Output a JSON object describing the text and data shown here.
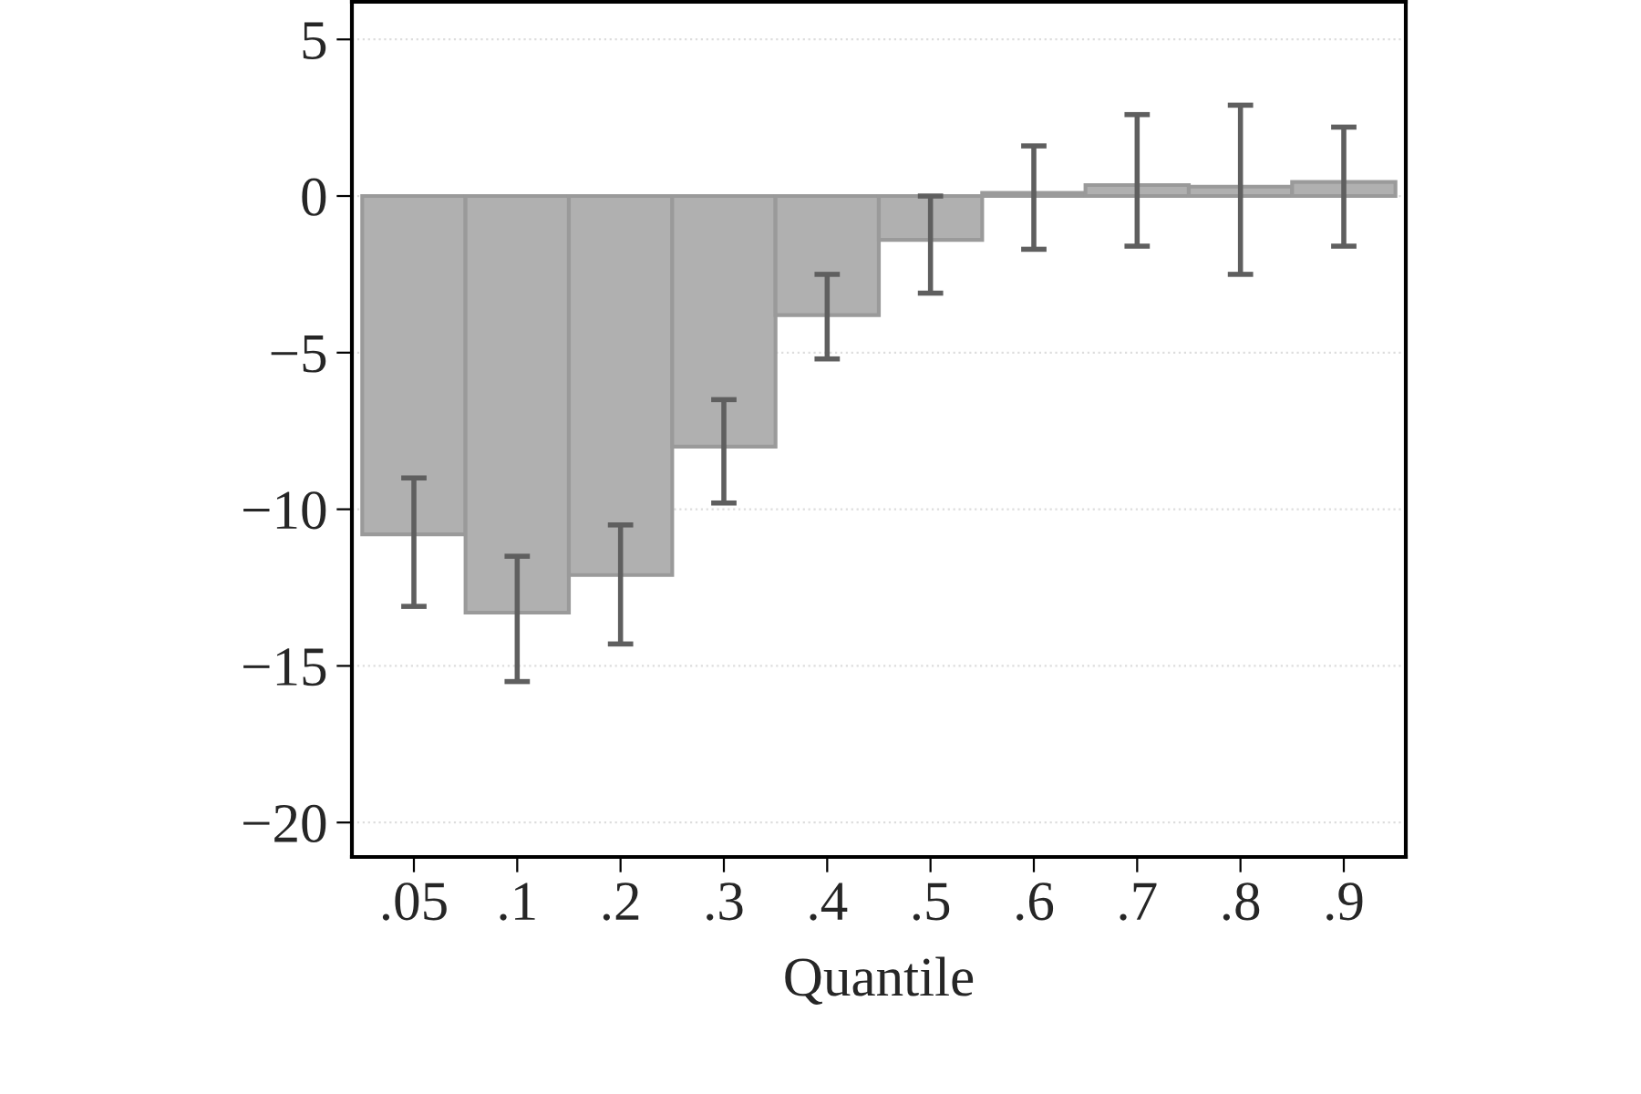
{
  "chart_data": {
    "type": "bar",
    "xlabel": "Quantile",
    "categories": [
      ".05",
      ".1",
      ".2",
      ".3",
      ".4",
      ".5",
      ".6",
      ".7",
      ".8",
      ".9"
    ],
    "values": [
      -10.8,
      -13.3,
      -12.1,
      -8.0,
      -3.8,
      -1.4,
      0.1,
      0.35,
      0.3,
      0.45
    ],
    "errors": [
      [
        -13.1,
        -9.0
      ],
      [
        -15.5,
        -11.5
      ],
      [
        -14.3,
        -10.5
      ],
      [
        -9.8,
        -6.5
      ],
      [
        -5.2,
        -2.5
      ],
      [
        -3.1,
        0.0
      ],
      [
        -1.7,
        1.6
      ],
      [
        -1.6,
        2.6
      ],
      [
        -2.5,
        2.9
      ],
      [
        -1.6,
        2.2
      ]
    ],
    "color": "#b0b0b0",
    "ylim": [
      -21.1,
      6.2
    ],
    "yticks": [
      {
        "value": -20,
        "label": "−20"
      },
      {
        "value": -15,
        "label": "−15"
      },
      {
        "value": -10,
        "label": "−10"
      },
      {
        "value": -5,
        "label": "−5"
      },
      0,
      5
    ],
    "grid": "y"
  }
}
